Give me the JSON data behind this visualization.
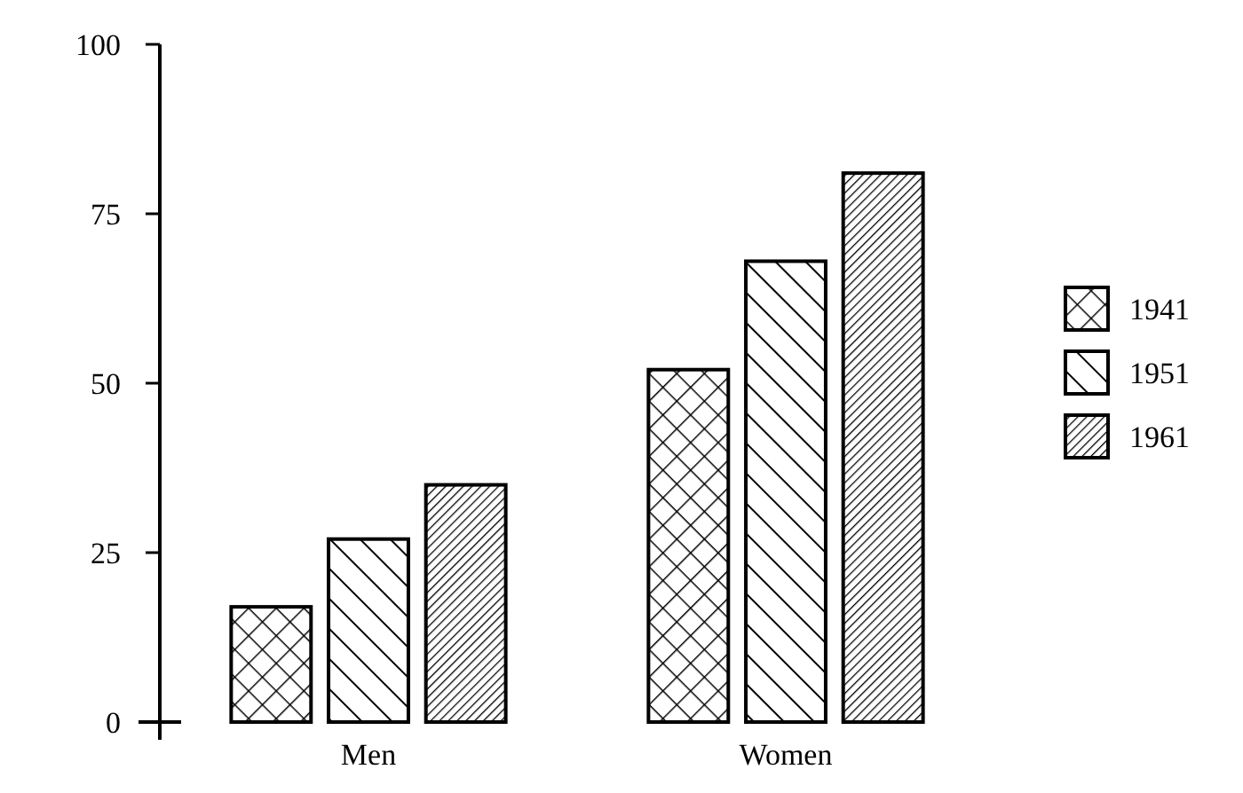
{
  "chart_data": {
    "type": "bar",
    "categories": [
      "Men",
      "Women"
    ],
    "series": [
      {
        "name": "1941",
        "color": "#000000",
        "values": [
          17,
          52
        ]
      },
      {
        "name": "1951",
        "color": "#000000",
        "values": [
          27,
          68
        ]
      },
      {
        "name": "1961",
        "color": "#000000",
        "values": [
          35,
          81
        ]
      }
    ],
    "ylim": [
      0,
      100
    ],
    "yticks": [
      0,
      25,
      50,
      75,
      100
    ],
    "legend": "right",
    "grid": false
  }
}
